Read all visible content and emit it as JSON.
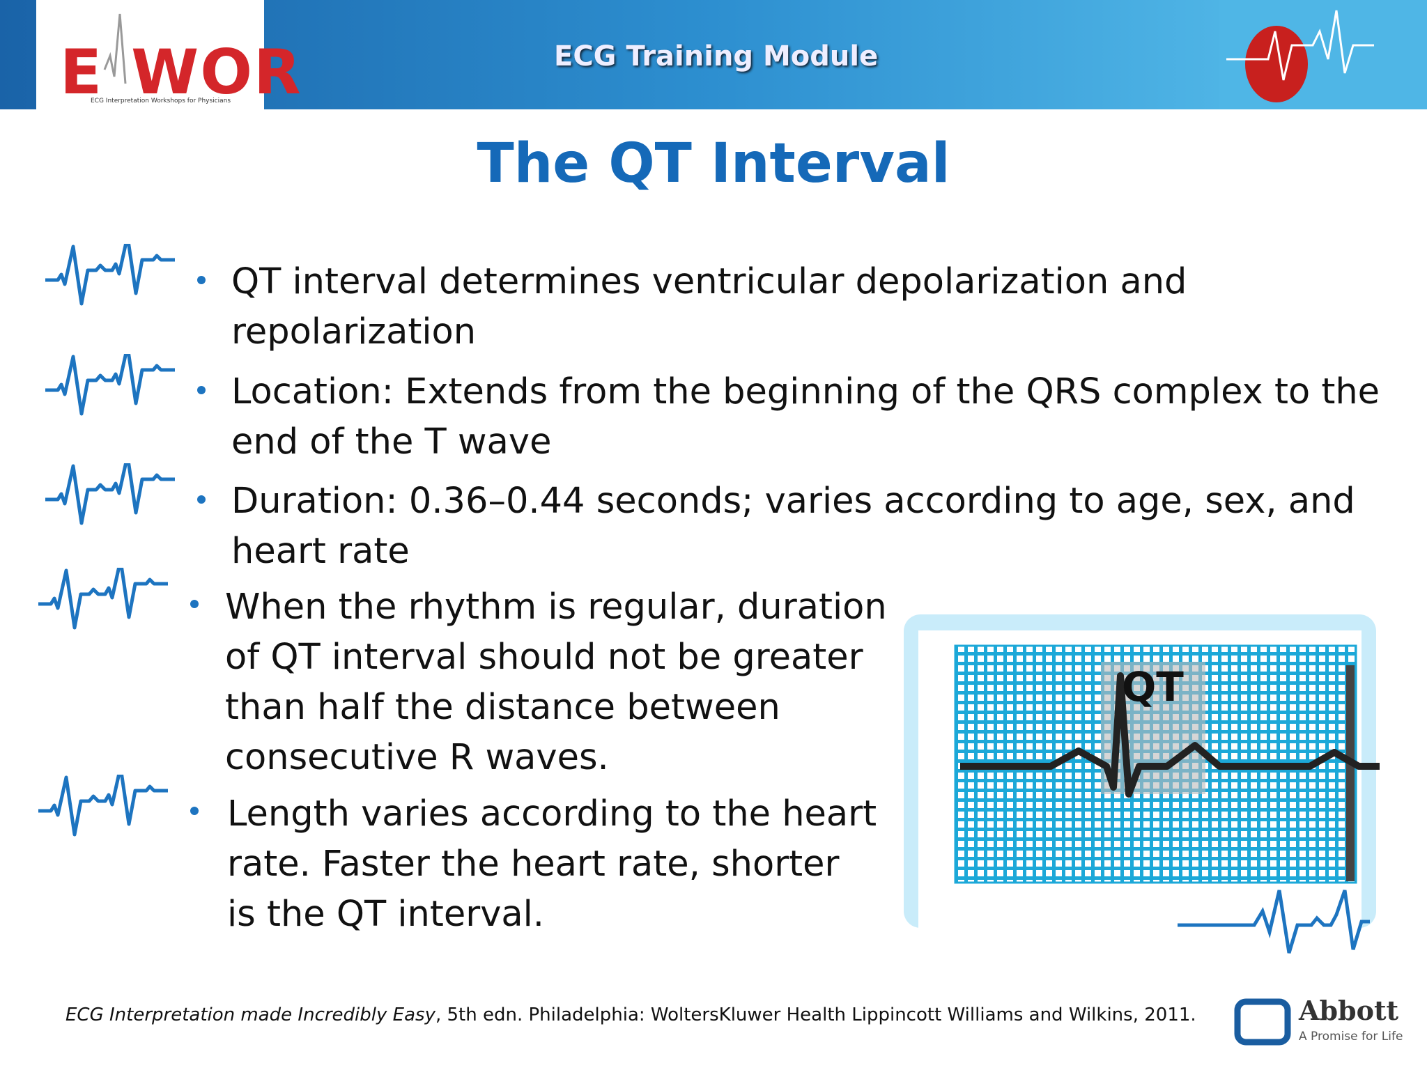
{
  "header": {
    "logo": {
      "left": "E",
      "right": "WOR",
      "tagline": "ECG Interpretation Workshops for Physicians"
    },
    "title": "ECG Training Module"
  },
  "title": "The QT Interval",
  "bullets": [
    {
      "lines": [
        "QT interval determines ventricular depolarization and",
        "repolarization"
      ]
    },
    {
      "lines": [
        "Location: Extends from the beginning of the QRS complex to the",
        "end of the T wave"
      ]
    },
    {
      "lines": [
        "Duration: 0.36–0.44 seconds; varies according to age, sex, and",
        "heart rate"
      ]
    },
    {
      "lines": [
        "When the rhythm is regular, duration",
        "of QT interval should not be greater",
        "than half the distance between",
        "consecutive R waves."
      ]
    },
    {
      "lines": [
        "Length varies according to the heart",
        "rate. Faster the heart rate, shorter",
        "is the QT interval."
      ]
    }
  ],
  "figure": {
    "label": "QT"
  },
  "citation": {
    "italic": "ECG Interpretation made Incredibly Easy",
    "rest": ", 5th edn. Philadelphia: WoltersKluwer Health Lippincott Williams and Wilkins, 2011."
  },
  "brand": {
    "name": "Abbott",
    "tagline": "A Promise for Life"
  }
}
